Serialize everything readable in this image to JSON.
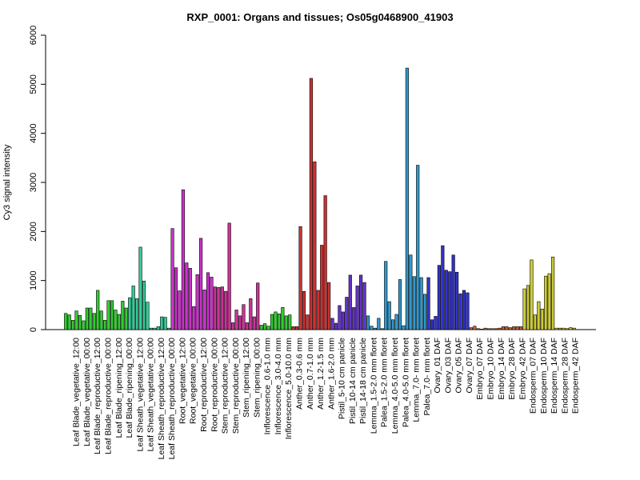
{
  "chart_data": {
    "type": "bar",
    "title": "RXP_0001: Organs and tissues; Os05g0468900_41903",
    "xlabel": "",
    "ylabel": "Cy3 signal intensity",
    "ylim": [
      0,
      6000
    ],
    "yticks": [
      0,
      1000,
      2000,
      3000,
      4000,
      5000,
      6000
    ],
    "grid": false,
    "legend": "none",
    "labeled_categories": [
      "Leaf Blade_vegetative_12:00",
      "Leaf Blade_vegetative_00:00",
      "Leaf Blade_reproductive_12:00",
      "Leaf Blade_reproductive_00:00",
      "Leaf Blade_ripening_12:00",
      "Leaf Blade_ripening_00:00",
      "Leaf Sheath_vegetative_12:00",
      "Leaf Sheath_vegetative_00:00",
      "Leaf Sheath_reproductive_12:00",
      "Leaf Sheath_reproductive_00:00",
      "Root_vegetative_12:00",
      "Root_vegetative_00:00",
      "Root_reproductive_12:00",
      "Root_reproductive_00:00",
      "Stem_reproductive_12:00",
      "Stem_reproductive_00:00",
      "Stem_ripening_12:00",
      "Stem_ripening_00:00",
      "Inflorescence_0.6-1.0 mm",
      "Inflorescence_3.0-4.0 mm",
      "Inflorescence_5.0-10.0 mm",
      "Anther_0.3-0.6 mm",
      "Anther_0.7-1.0 mm",
      "Anther_1.2-1.5 mm",
      "Anther_1.6-2.0 mm",
      "Pistil_5-10 cm panicle",
      "Pistil_10-14 cm panicle",
      "Pistil_14-18 cm panicle",
      "Lemma_1.5-2.0 mm floret",
      "Palea_1.5-2.0 mm floret",
      "Lemma_4.0-5.0 mm floret",
      "Palea_4.0-5.0 mm floret",
      "Lemma_7.0- mm floret",
      "Palea_7.0- mm floret",
      "Ovary_01 DAF",
      "Ovary_03 DAF",
      "Ovary_05 DAF",
      "Ovary_07 DAF",
      "Embryo_07 DAF",
      "Embryo_10 DAF",
      "Embryo_14 DAF",
      "Embryo_28 DAF",
      "Embryo_42 DAF",
      "Endosperm_07 DAF",
      "Endosperm_10 DAF",
      "Endosperm_14 DAF",
      "Endosperm_28 DAF",
      "Endosperm_42 DAF"
    ],
    "groups": [
      {
        "color": "#33cc33",
        "values": [
          330,
          300,
          190,
          380,
          290,
          180,
          440,
          440,
          330,
          800,
          380,
          190,
          590,
          590,
          400,
          310,
          580,
          440
        ]
      },
      {
        "color": "#33cc99",
        "values": [
          650,
          890,
          630,
          1680,
          990,
          560,
          30,
          30,
          60,
          260,
          250,
          30
        ]
      },
      {
        "color": "#cc33cc",
        "values": [
          2060,
          1260,
          790,
          2850,
          1360,
          1250,
          470,
          1120,
          1860,
          810,
          1160,
          1070
        ]
      },
      {
        "color": "#cc3399",
        "values": [
          870,
          860,
          870,
          780,
          2170,
          140,
          400,
          280,
          510,
          140,
          630,
          260,
          950
        ]
      },
      {
        "color": "#33cc33",
        "values": [
          90,
          120,
          70,
          310,
          360,
          320,
          450,
          280,
          300
        ]
      },
      {
        "color": "#cc3333",
        "values": [
          60,
          60,
          2100,
          780,
          300,
          5120,
          3420,
          800,
          1720,
          2730,
          960
        ]
      },
      {
        "color": "#6633cc",
        "values": [
          230,
          130,
          490,
          360,
          660,
          1110,
          450,
          890,
          1110,
          960
        ]
      },
      {
        "color": "#3399cc",
        "values": [
          280,
          70,
          30,
          230,
          20,
          1390,
          570,
          200,
          310,
          1020,
          80,
          5330,
          1520,
          1080,
          3350,
          1060,
          720
        ]
      },
      {
        "color": "#3333cc",
        "values": [
          1060,
          200,
          270,
          1310,
          1710,
          1210,
          1180,
          1520,
          1170,
          730,
          800,
          750
        ]
      },
      {
        "color": "#cc6633",
        "values": [
          40,
          70,
          20,
          10,
          30,
          20,
          20,
          20,
          30,
          60,
          60,
          40,
          60,
          60,
          60
        ]
      },
      {
        "color": "#cccc33",
        "values": [
          830,
          900,
          1420,
          300,
          570,
          420,
          1090,
          1140,
          1480,
          30,
          30,
          30,
          20,
          40,
          30
        ]
      }
    ]
  }
}
